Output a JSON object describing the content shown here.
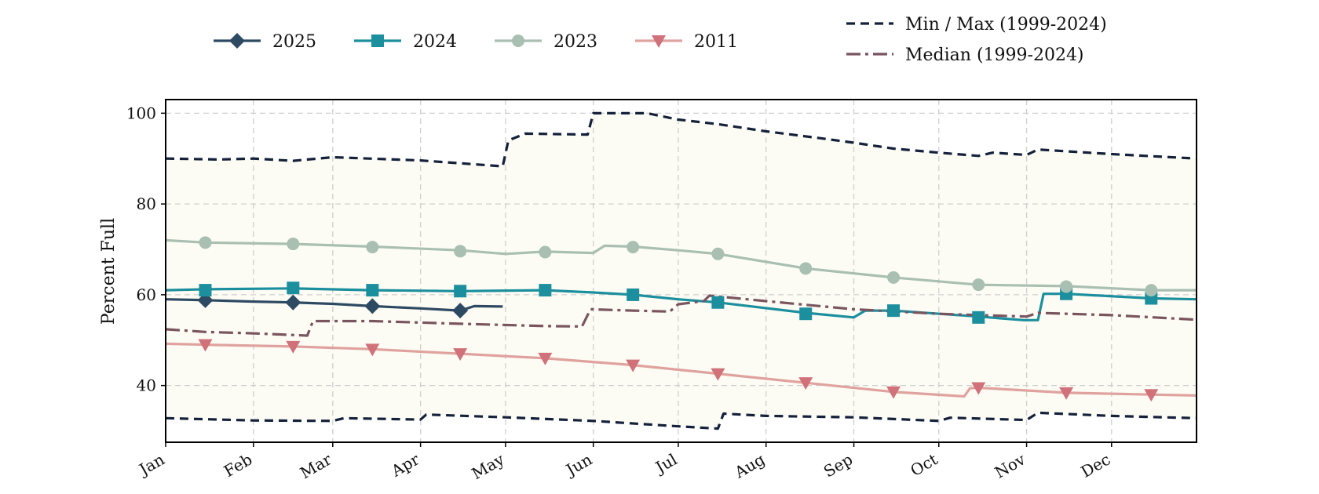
{
  "chart_data": {
    "type": "line",
    "xlabel": "",
    "ylabel": "Percent Full",
    "ylim": [
      27.5,
      103
    ],
    "y_ticks": [
      40,
      60,
      80,
      100
    ],
    "x_tick_labels": [
      "Jan",
      "Feb",
      "Mar",
      "Apr",
      "May",
      "Jun",
      "Jul",
      "Aug",
      "Sep",
      "Oct",
      "Nov",
      "Dec"
    ],
    "x_domain": [
      "Jan 1",
      "Dec 31"
    ],
    "grid": true,
    "legend_placement": "top",
    "shaded_band": {
      "between": [
        "Min",
        "Max"
      ],
      "color": "#fcfcf4"
    },
    "legend": {
      "years": [
        "2025",
        "2024",
        "2023",
        "2011"
      ],
      "reference": [
        "Min / Max (1999-2024)",
        "Median (1999-2024)"
      ]
    },
    "series": [
      {
        "name": "2025",
        "color": "#2e4a63",
        "marker": "diamond",
        "style": "solid",
        "points": [
          [
            "Jan 1",
            59.0
          ],
          [
            "Jan 15",
            58.8
          ],
          [
            "Feb 1",
            58.5
          ],
          [
            "Feb 15",
            58.3
          ],
          [
            "Mar 1",
            58.0
          ],
          [
            "Mar 15",
            57.5
          ],
          [
            "Apr 1",
            57.0
          ],
          [
            "Apr 15",
            56.5
          ],
          [
            "Apr 20",
            57.5
          ],
          [
            "Apr 30",
            57.4
          ]
        ],
        "markers": [
          [
            "Jan 15",
            58.8
          ],
          [
            "Feb 15",
            58.3
          ],
          [
            "Mar 15",
            57.5
          ],
          [
            "Apr 15",
            56.5
          ]
        ]
      },
      {
        "name": "2024",
        "color": "#1c8f9e",
        "marker": "square",
        "style": "solid",
        "points": [
          [
            "Jan 1",
            61.0
          ],
          [
            "Jan 15",
            61.2
          ],
          [
            "Feb 15",
            61.4
          ],
          [
            "Mar 15",
            61.0
          ],
          [
            "Apr 15",
            60.8
          ],
          [
            "May 15",
            61.0
          ],
          [
            "Jun 1",
            60.5
          ],
          [
            "Jun 15",
            60.0
          ],
          [
            "Jul 1",
            59.0
          ],
          [
            "Jul 15",
            58.3
          ],
          [
            "Aug 15",
            56.0
          ],
          [
            "Sep 1",
            55.0
          ],
          [
            "Sep 5",
            56.5
          ],
          [
            "Sep 15",
            56.5
          ],
          [
            "Oct 15",
            55.2
          ],
          [
            "Oct 31",
            54.4
          ],
          [
            "Nov 5",
            54.4
          ],
          [
            "Nov 7",
            60.2
          ],
          [
            "Nov 15",
            60.2
          ],
          [
            "Dec 15",
            59.2
          ],
          [
            "Dec 31",
            59.0
          ]
        ],
        "markers": [
          [
            "Jan 15",
            61.0
          ],
          [
            "Feb 15",
            61.5
          ],
          [
            "Mar 15",
            61.0
          ],
          [
            "Apr 15",
            60.8
          ],
          [
            "May 15",
            61.0
          ],
          [
            "Jun 15",
            60.0
          ],
          [
            "Jul 15",
            58.3
          ],
          [
            "Aug 15",
            55.8
          ],
          [
            "Sep 15",
            56.5
          ],
          [
            "Oct 15",
            55.0
          ],
          [
            "Nov 15",
            60.2
          ],
          [
            "Dec 15",
            59.2
          ]
        ]
      },
      {
        "name": "2023",
        "color": "#a9bfb2",
        "marker": "circle",
        "style": "solid",
        "points": [
          [
            "Jan 1",
            72.0
          ],
          [
            "Jan 15",
            71.5
          ],
          [
            "Feb 15",
            71.2
          ],
          [
            "Mar 15",
            70.6
          ],
          [
            "Apr 15",
            69.8
          ],
          [
            "May 1",
            69.0
          ],
          [
            "May 15",
            69.5
          ],
          [
            "Jun 1",
            69.2
          ],
          [
            "Jun 5",
            70.8
          ],
          [
            "Jun 15",
            70.6
          ],
          [
            "Jul 1",
            69.8
          ],
          [
            "Jul 15",
            69.0
          ],
          [
            "Aug 15",
            65.8
          ],
          [
            "Sep 15",
            63.8
          ],
          [
            "Oct 15",
            62.2
          ],
          [
            "Nov 15",
            61.9
          ],
          [
            "Dec 15",
            61.0
          ],
          [
            "Dec 31",
            61.0
          ]
        ],
        "markers": [
          [
            "Jan 15",
            71.5
          ],
          [
            "Feb 15",
            71.2
          ],
          [
            "Mar 15",
            70.5
          ],
          [
            "Apr 15",
            69.6
          ],
          [
            "May 15",
            69.4
          ],
          [
            "Jun 15",
            70.5
          ],
          [
            "Jul 15",
            69.0
          ],
          [
            "Aug 15",
            65.8
          ],
          [
            "Sep 15",
            63.8
          ],
          [
            "Oct 15",
            62.2
          ],
          [
            "Nov 15",
            61.8
          ],
          [
            "Dec 15",
            61.0
          ]
        ]
      },
      {
        "name": "2011",
        "color": "#e0a29f",
        "marker_color": "#d1717a",
        "marker": "triangle-down",
        "style": "solid",
        "points": [
          [
            "Jan 1",
            49.2
          ],
          [
            "Jan 15",
            49.0
          ],
          [
            "Feb 15",
            48.6
          ],
          [
            "Mar 15",
            48.0
          ],
          [
            "Apr 15",
            47.0
          ],
          [
            "May 15",
            46.0
          ],
          [
            "Jun 15",
            44.5
          ],
          [
            "Jul 15",
            42.6
          ],
          [
            "Aug 15",
            40.6
          ],
          [
            "Sep 15",
            38.6
          ],
          [
            "Oct 10",
            37.6
          ],
          [
            "Oct 12",
            39.4
          ],
          [
            "Oct 15",
            39.5
          ],
          [
            "Nov 15",
            38.4
          ],
          [
            "Dec 15",
            38.0
          ],
          [
            "Dec 31",
            37.8
          ]
        ],
        "markers": [
          [
            "Jan 15",
            49.0
          ],
          [
            "Feb 15",
            48.6
          ],
          [
            "Mar 15",
            48.0
          ],
          [
            "Apr 15",
            47.0
          ],
          [
            "May 15",
            46.0
          ],
          [
            "Jun 15",
            44.5
          ],
          [
            "Jul 15",
            42.6
          ],
          [
            "Aug 15",
            40.6
          ],
          [
            "Sep 15",
            38.6
          ],
          [
            "Oct 15",
            39.5
          ],
          [
            "Nov 15",
            38.4
          ],
          [
            "Dec 15",
            38.0
          ]
        ]
      },
      {
        "name": "Max",
        "color": "#14213a",
        "style": "dashed",
        "points": [
          [
            "Jan 1",
            90.0
          ],
          [
            "Jan 20",
            89.8
          ],
          [
            "Feb 1",
            90.0
          ],
          [
            "Feb 15",
            89.5
          ],
          [
            "Mar 1",
            90.3
          ],
          [
            "Apr 1",
            89.6
          ],
          [
            "Apr 30",
            88.3
          ],
          [
            "May 2",
            94.0
          ],
          [
            "May 8",
            95.5
          ],
          [
            "May 30",
            95.3
          ],
          [
            "Jun 1",
            100.0
          ],
          [
            "Jun 20",
            100.0
          ],
          [
            "Jul 1",
            98.6
          ],
          [
            "Jul 15",
            97.6
          ],
          [
            "Aug 1",
            96.0
          ],
          [
            "Aug 20",
            94.5
          ],
          [
            "Sep 1",
            93.5
          ],
          [
            "Sep 15",
            92.2
          ],
          [
            "Oct 1",
            91.3
          ],
          [
            "Oct 15",
            90.6
          ],
          [
            "Oct 20",
            91.3
          ],
          [
            "Nov 1",
            90.8
          ],
          [
            "Nov 5",
            92.0
          ],
          [
            "Dec 1",
            91.0
          ],
          [
            "Dec 31",
            90.0
          ]
        ]
      },
      {
        "name": "Min",
        "color": "#14213a",
        "style": "dashed",
        "points": [
          [
            "Jan 1",
            32.8
          ],
          [
            "Feb 1",
            32.3
          ],
          [
            "Mar 1",
            32.2
          ],
          [
            "Mar 5",
            32.8
          ],
          [
            "Apr 1",
            32.5
          ],
          [
            "Apr 3",
            33.6
          ],
          [
            "May 1",
            33.0
          ],
          [
            "Jun 1",
            32.2
          ],
          [
            "Jul 1",
            31.0
          ],
          [
            "Jul 15",
            30.5
          ],
          [
            "Jul 17",
            33.8
          ],
          [
            "Aug 1",
            33.3
          ],
          [
            "Sep 1",
            33.0
          ],
          [
            "Oct 1",
            32.2
          ],
          [
            "Oct 5",
            32.9
          ],
          [
            "Nov 1",
            32.4
          ],
          [
            "Nov 5",
            34.0
          ],
          [
            "Dec 1",
            33.3
          ],
          [
            "Dec 31",
            32.8
          ]
        ]
      },
      {
        "name": "Median",
        "color": "#7a5560",
        "style": "dashdot",
        "points": [
          [
            "Jan 1",
            52.4
          ],
          [
            "Jan 15",
            51.8
          ],
          [
            "Feb 1",
            51.5
          ],
          [
            "Feb 20",
            51.0
          ],
          [
            "Feb 22",
            54.2
          ],
          [
            "Mar 15",
            54.2
          ],
          [
            "Apr 15",
            53.6
          ],
          [
            "May 15",
            53.1
          ],
          [
            "May 28",
            53.0
          ],
          [
            "May 31",
            56.8
          ],
          [
            "Jun 15",
            56.5
          ],
          [
            "Jun 28",
            56.3
          ],
          [
            "Jul 1",
            57.9
          ],
          [
            "Jul 10",
            58.6
          ],
          [
            "Jul 12",
            59.8
          ],
          [
            "Aug 1",
            58.6
          ],
          [
            "Sep 1",
            56.8
          ],
          [
            "Oct 1",
            55.8
          ],
          [
            "Nov 1",
            55.2
          ],
          [
            "Nov 5",
            56.0
          ],
          [
            "Dec 1",
            55.5
          ],
          [
            "Dec 31",
            54.5
          ]
        ]
      }
    ]
  }
}
